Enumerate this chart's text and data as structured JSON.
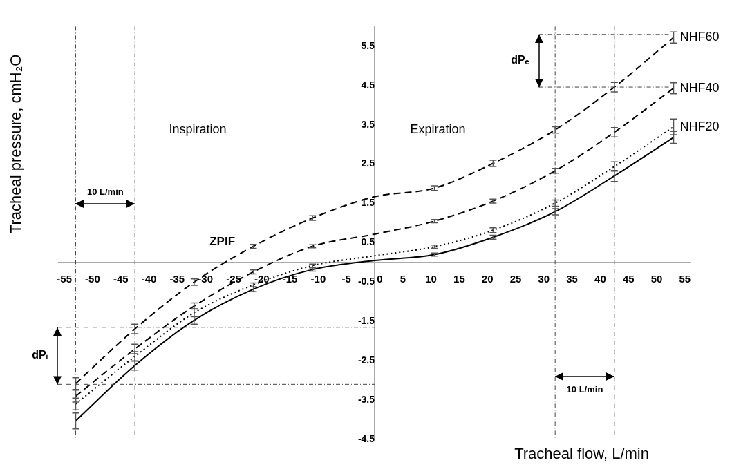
{
  "chart_data": {
    "type": "line",
    "xlabel": "Tracheal flow, L/min",
    "ylabel": "Tracheal pressure, cmH₂O",
    "x": [
      -53,
      -42.5,
      -32,
      -21.5,
      -11,
      0,
      10.6,
      21,
      32,
      42.5,
      53
    ],
    "xlim": [
      -56,
      56
    ],
    "xticks": [
      -55,
      -50,
      -45,
      -40,
      -35,
      -30,
      -25,
      -20,
      -15,
      -10,
      -5,
      0,
      5,
      10,
      15,
      20,
      25,
      30,
      35,
      40,
      45,
      50,
      55
    ],
    "ylim": [
      -4.5,
      6
    ],
    "yticks": [
      -4.5,
      -3.5,
      -2.5,
      -1.5,
      -0.5,
      0.5,
      1.5,
      2.5,
      3.5,
      4.5,
      5.5
    ],
    "grid": false,
    "legend": false,
    "series": [
      {
        "name": "NHF60",
        "color": "#000000",
        "line_style": "dashed",
        "values": [
          -3.08,
          -1.69,
          -0.5,
          0.41,
          1.13,
          1.67,
          1.89,
          2.52,
          3.37,
          4.46,
          5.72
        ],
        "errors": [
          0.15,
          0.12,
          0.08,
          0.05,
          0.06,
          null,
          0.06,
          0.08,
          0.08,
          0.12,
          0.14
        ]
      },
      {
        "name": "NHF40",
        "color": "#000000",
        "line_style": "dashed",
        "values": [
          -3.4,
          -2.2,
          -1.11,
          -0.24,
          0.41,
          0.72,
          1.05,
          1.56,
          2.33,
          3.31,
          4.43
        ],
        "errors": [
          0.15,
          0.12,
          0.08,
          0.05,
          0.04,
          null,
          0.04,
          0.05,
          0.06,
          0.12,
          0.14
        ]
      },
      {
        "name": "NHF20",
        "color": "#000000",
        "line_style": "dotted",
        "values": [
          -3.6,
          -2.39,
          -1.28,
          -0.57,
          -0.08,
          0.17,
          0.4,
          0.82,
          1.51,
          2.44,
          3.45
        ],
        "errors": [
          0.15,
          0.12,
          0.1,
          0.05,
          0.04,
          null,
          0.04,
          0.06,
          0.08,
          0.12,
          0.2
        ]
      },
      {
        "color": "#000000",
        "line_style": "solid",
        "values": [
          -4.03,
          -2.62,
          -1.47,
          -0.68,
          -0.18,
          0.05,
          0.2,
          0.64,
          1.29,
          2.2,
          3.18
        ],
        "errors": [
          0.2,
          0.12,
          0.1,
          0.06,
          0.04,
          null,
          0.04,
          0.05,
          0.08,
          0.14,
          0.15
        ]
      }
    ],
    "ref_lines": [
      {
        "axis": "y",
        "value": -1.65,
        "line_style": "dashed"
      },
      {
        "axis": "y",
        "value": -3.1,
        "line_style": "dashed"
      },
      {
        "axis": "y",
        "value": 5.8,
        "line_style": "dashed"
      },
      {
        "axis": "y",
        "value": 4.46,
        "line_style": "dashed"
      },
      {
        "axis": "x",
        "value": -53,
        "line_style": "dashed"
      },
      {
        "axis": "x",
        "value": -42.5,
        "line_style": "dashed"
      },
      {
        "axis": "x",
        "value": 32,
        "line_style": "dashed"
      },
      {
        "axis": "x",
        "value": 42.5,
        "line_style": "dashed"
      }
    ],
    "annotations": [
      "dPᵢ",
      "dPₑ",
      "10 L/min",
      "10 L/min",
      {
        "text": "ZPIF",
        "x": -27,
        "y": 0
      },
      "Inspiration",
      "Expiration"
    ]
  }
}
